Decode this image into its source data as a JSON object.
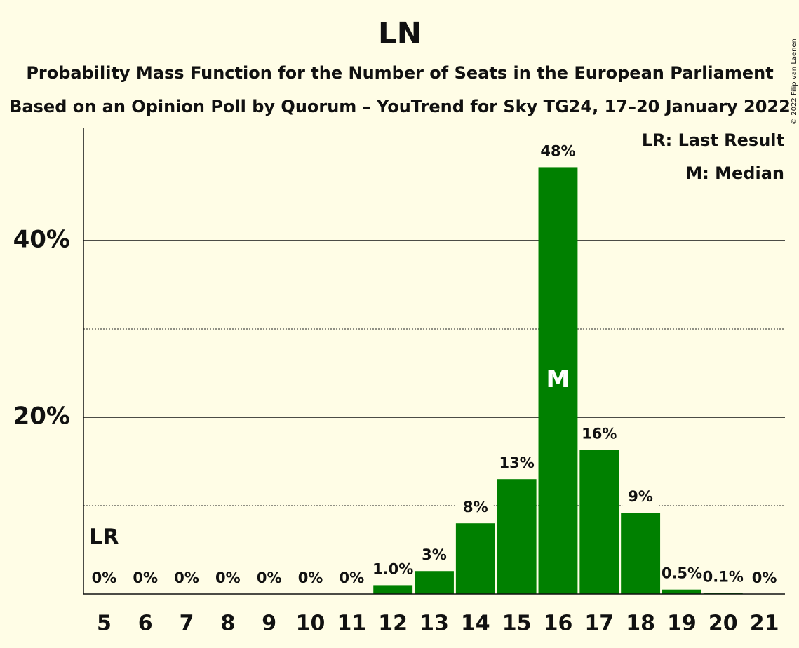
{
  "chart_data": {
    "type": "bar",
    "title": "LN",
    "subtitle": "Probability Mass Function for the Number of Seats in the European Parliament",
    "subtitle2": "Based on an Opinion Poll by Quorum – YouTrend for Sky TG24, 17–20 January 2022",
    "categories": [
      5,
      6,
      7,
      8,
      9,
      10,
      11,
      12,
      13,
      14,
      15,
      16,
      17,
      18,
      19,
      20,
      21
    ],
    "values": [
      0,
      0,
      0,
      0,
      0,
      0,
      0,
      1.0,
      2.6,
      8.0,
      13.0,
      48.3,
      16.3,
      9.2,
      0.5,
      0.1,
      0
    ],
    "value_labels": [
      "0%",
      "0%",
      "0%",
      "0%",
      "0%",
      "0%",
      "0%",
      "1.0%",
      "3%",
      "8%",
      "13%",
      "48%",
      "16%",
      "9%",
      "0.5%",
      "0.1%",
      "0%"
    ],
    "color": "#008000",
    "ylim": [
      0,
      52.7
    ],
    "yticks": [
      {
        "value": 20,
        "label": "20%"
      },
      {
        "value": 40,
        "label": "40%"
      }
    ],
    "minor_yticks": [
      10,
      30
    ],
    "grid": true,
    "annotations": [
      {
        "text": "LR",
        "x": 5
      },
      {
        "text": "M",
        "x": 16
      }
    ],
    "legend": [
      "LR: Last Result",
      "M: Median"
    ],
    "copyright": "© 2022 Filip van Laenen"
  }
}
